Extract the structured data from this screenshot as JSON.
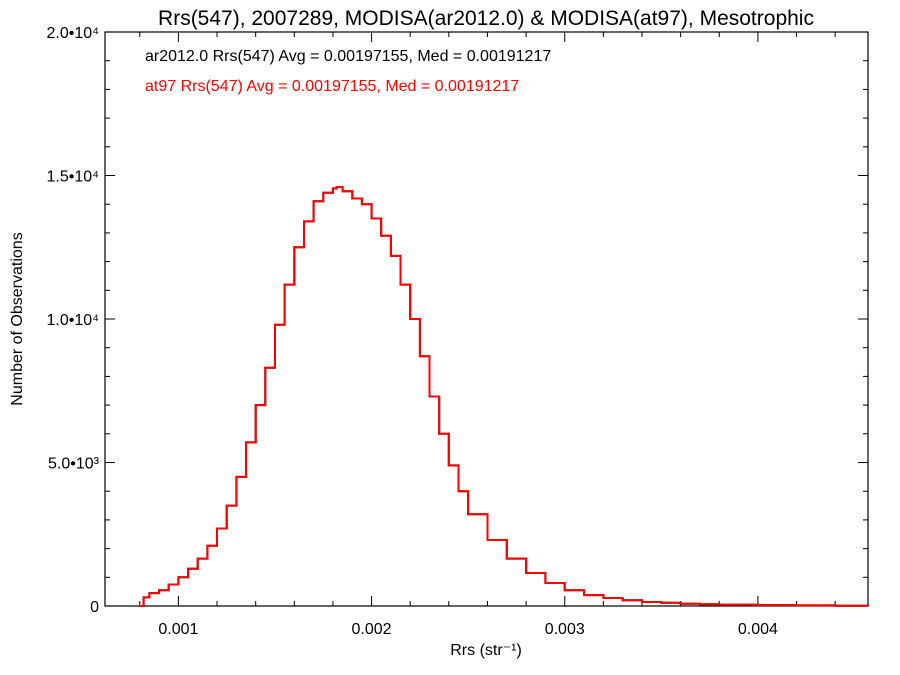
{
  "chart_data": {
    "type": "histogram",
    "title": "Rrs(547), 2007289, MODISA(ar2012.0) & MODISA(at97), Mesotrophic",
    "xlabel": "Rrs (str⁻¹)",
    "ylabel": "Number of Observations",
    "xlim": [
      0.00062,
      0.00457
    ],
    "ylim": [
      0,
      20000
    ],
    "x_ticks": [
      {
        "value": 0.001,
        "label": "0.001"
      },
      {
        "value": 0.002,
        "label": "0.002"
      },
      {
        "value": 0.003,
        "label": "0.003"
      },
      {
        "value": 0.004,
        "label": "0.004"
      }
    ],
    "y_ticks": [
      {
        "value": 0,
        "label": "0"
      },
      {
        "value": 5000,
        "label": "5.0•10³"
      },
      {
        "value": 10000,
        "label": "1.0•10⁴"
      },
      {
        "value": 15000,
        "label": "1.5•10⁴"
      },
      {
        "value": 20000,
        "label": "2.0•10⁴"
      }
    ],
    "annotations": [
      {
        "text": "ar2012.0 Rrs(547) Avg = 0.00197155, Med = 0.00191217",
        "color": "#000000"
      },
      {
        "text": "at97 Rrs(547) Avg = 0.00197155, Med = 0.00191217",
        "color": "#ff0000"
      }
    ],
    "series": [
      {
        "name": "ar2012.0",
        "color": "#000000",
        "x": [
          0.0008,
          0.00082,
          0.00085,
          0.0009,
          0.00095,
          0.001,
          0.00105,
          0.0011,
          0.00115,
          0.0012,
          0.00125,
          0.0013,
          0.00135,
          0.0014,
          0.00145,
          0.0015,
          0.00155,
          0.0016,
          0.00165,
          0.0017,
          0.00175,
          0.0018,
          0.00182,
          0.00185,
          0.0019,
          0.00195,
          0.002,
          0.00205,
          0.0021,
          0.00215,
          0.0022,
          0.00225,
          0.0023,
          0.00235,
          0.0024,
          0.00245,
          0.0025,
          0.0026,
          0.0027,
          0.0028,
          0.0029,
          0.003,
          0.0031,
          0.0032,
          0.0033,
          0.0034,
          0.0035,
          0.0036,
          0.0037,
          0.0038,
          0.004,
          0.0042,
          0.0044,
          0.00457
        ],
        "y": [
          0,
          300,
          450,
          550,
          750,
          1000,
          1300,
          1650,
          2100,
          2700,
          3500,
          4500,
          5700,
          7000,
          8300,
          9800,
          11200,
          12500,
          13400,
          14100,
          14400,
          14550,
          14600,
          14450,
          14200,
          14000,
          13500,
          12900,
          12200,
          11200,
          10000,
          8700,
          7300,
          6000,
          4900,
          4000,
          3200,
          2300,
          1650,
          1150,
          800,
          550,
          380,
          280,
          200,
          140,
          110,
          80,
          60,
          45,
          30,
          20,
          10,
          5
        ]
      },
      {
        "name": "at97",
        "color": "#ff0000",
        "x": [
          0.0008,
          0.00082,
          0.00085,
          0.0009,
          0.00095,
          0.001,
          0.00105,
          0.0011,
          0.00115,
          0.0012,
          0.00125,
          0.0013,
          0.00135,
          0.0014,
          0.00145,
          0.0015,
          0.00155,
          0.0016,
          0.00165,
          0.0017,
          0.00175,
          0.0018,
          0.00182,
          0.00185,
          0.0019,
          0.00195,
          0.002,
          0.00205,
          0.0021,
          0.00215,
          0.0022,
          0.00225,
          0.0023,
          0.00235,
          0.0024,
          0.00245,
          0.0025,
          0.0026,
          0.0027,
          0.0028,
          0.0029,
          0.003,
          0.0031,
          0.0032,
          0.0033,
          0.0034,
          0.0035,
          0.0036,
          0.0037,
          0.0038,
          0.004,
          0.0042,
          0.0044,
          0.00457
        ],
        "y": [
          0,
          300,
          450,
          550,
          750,
          1000,
          1300,
          1650,
          2100,
          2700,
          3500,
          4500,
          5700,
          7000,
          8300,
          9800,
          11200,
          12500,
          13400,
          14100,
          14400,
          14550,
          14600,
          14450,
          14200,
          14000,
          13500,
          12900,
          12200,
          11200,
          10000,
          8700,
          7300,
          6000,
          4900,
          4000,
          3200,
          2300,
          1650,
          1150,
          800,
          550,
          380,
          280,
          200,
          140,
          110,
          80,
          60,
          45,
          30,
          20,
          10,
          5
        ]
      }
    ],
    "grid": false
  }
}
